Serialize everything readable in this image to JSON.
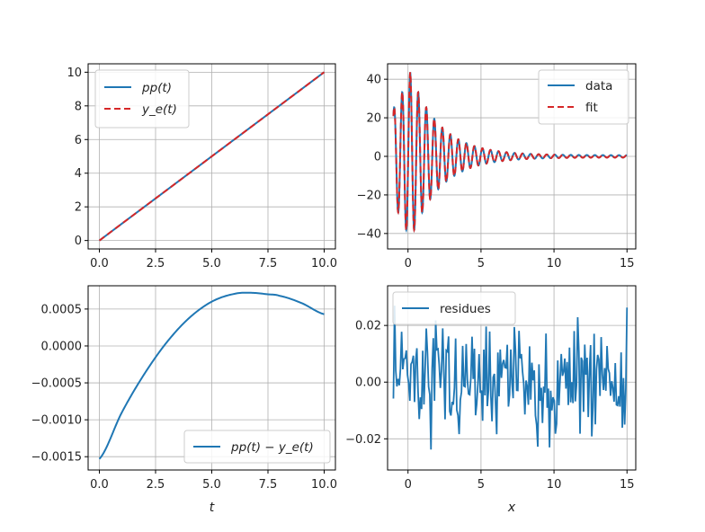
{
  "figure": {
    "layout": "2x2 subplots",
    "background": "#ffffff"
  },
  "colors": {
    "blue": "#1f77b4",
    "red": "#d62728",
    "grid": "#b0b0b0",
    "axes": "#000000"
  },
  "chart_data": [
    {
      "id": "top-left",
      "type": "line",
      "title": "",
      "xlabel": "",
      "ylabel": "",
      "xlim": [
        -0.5,
        10.5
      ],
      "ylim": [
        -0.5,
        10.5
      ],
      "xticks": [
        0,
        2.5,
        5,
        7.5,
        10
      ],
      "xtick_labels": [
        "0.0",
        "2.5",
        "5.0",
        "7.5",
        "10.0"
      ],
      "yticks": [
        0,
        2,
        4,
        6,
        8,
        10
      ],
      "ytick_labels": [
        "0",
        "2",
        "4",
        "6",
        "8",
        "10"
      ],
      "grid": true,
      "legend_placement": "upper-left",
      "series": [
        {
          "name": "pp(t)",
          "style": "solid",
          "color": "#1f77b4",
          "x": [
            0,
            10
          ],
          "y": [
            0,
            10
          ]
        },
        {
          "name": "y_e(t)",
          "style": "dashed",
          "color": "#d62728",
          "x": [
            0,
            10
          ],
          "y": [
            0,
            10
          ]
        }
      ]
    },
    {
      "id": "top-right",
      "type": "line",
      "title": "",
      "xlabel": "",
      "ylabel": "",
      "xlim": [
        -1.4,
        15.6
      ],
      "ylim": [
        -48,
        48
      ],
      "xticks": [
        0,
        5,
        10,
        15
      ],
      "xtick_labels": [
        "0",
        "5",
        "10",
        "15"
      ],
      "yticks": [
        -40,
        -20,
        0,
        20,
        40
      ],
      "ytick_labels": [
        "−40",
        "−20",
        "0",
        "20",
        "40"
      ],
      "grid": true,
      "legend_placement": "upper-right",
      "signal": {
        "kind": "damped oscillation",
        "x_range": [
          -1,
          15
        ],
        "peak_x": 0.15,
        "peak_y": 43,
        "trough_y": -43,
        "period": 0.55,
        "decay": 0.5
      },
      "series": [
        {
          "name": "data",
          "style": "solid",
          "color": "#1f77b4"
        },
        {
          "name": "fit",
          "style": "dashed",
          "color": "#d62728"
        }
      ]
    },
    {
      "id": "bottom-left",
      "type": "line",
      "title": "",
      "xlabel": "t",
      "ylabel": "",
      "xlim": [
        -0.5,
        10.5
      ],
      "ylim": [
        -0.00168,
        0.000815
      ],
      "xticks": [
        0,
        2.5,
        5,
        7.5,
        10
      ],
      "xtick_labels": [
        "0.0",
        "2.5",
        "5.0",
        "7.5",
        "10.0"
      ],
      "yticks": [
        -0.0015,
        -0.001,
        -0.0005,
        0,
        0.0005
      ],
      "ytick_labels": [
        "−0.0015",
        "−0.0010",
        "−0.0005",
        "0.0000",
        "0.0005"
      ],
      "grid": true,
      "legend_placement": "lower-right",
      "series": [
        {
          "name": "pp(t) − y_e(t)",
          "style": "solid",
          "color": "#1f77b4",
          "x": [
            0,
            1,
            2,
            3,
            4,
            5,
            6,
            6.75,
            7.5,
            8,
            9,
            10
          ],
          "y": [
            -0.00153,
            -0.0009,
            -0.00038,
            5e-05,
            0.00038,
            0.0006,
            0.000705,
            0.00072,
            0.0007,
            0.00068,
            0.00058,
            0.00043
          ]
        }
      ]
    },
    {
      "id": "bottom-right",
      "type": "line",
      "title": "",
      "xlabel": "x",
      "ylabel": "",
      "xlim": [
        -1.4,
        15.6
      ],
      "ylim": [
        -0.031,
        0.034
      ],
      "xticks": [
        0,
        5,
        10,
        15
      ],
      "xtick_labels": [
        "0",
        "5",
        "10",
        "15"
      ],
      "yticks": [
        -0.02,
        0,
        0.02
      ],
      "ytick_labels": [
        "−0.02",
        "0.00",
        "0.02"
      ],
      "grid": true,
      "legend_placement": "upper-left",
      "noise": {
        "x_range": [
          -1,
          15
        ],
        "points": 200,
        "amplitude": 0.027,
        "spread": 0.01
      },
      "series": [
        {
          "name": "residues",
          "style": "solid",
          "color": "#1f77b4"
        }
      ]
    }
  ]
}
